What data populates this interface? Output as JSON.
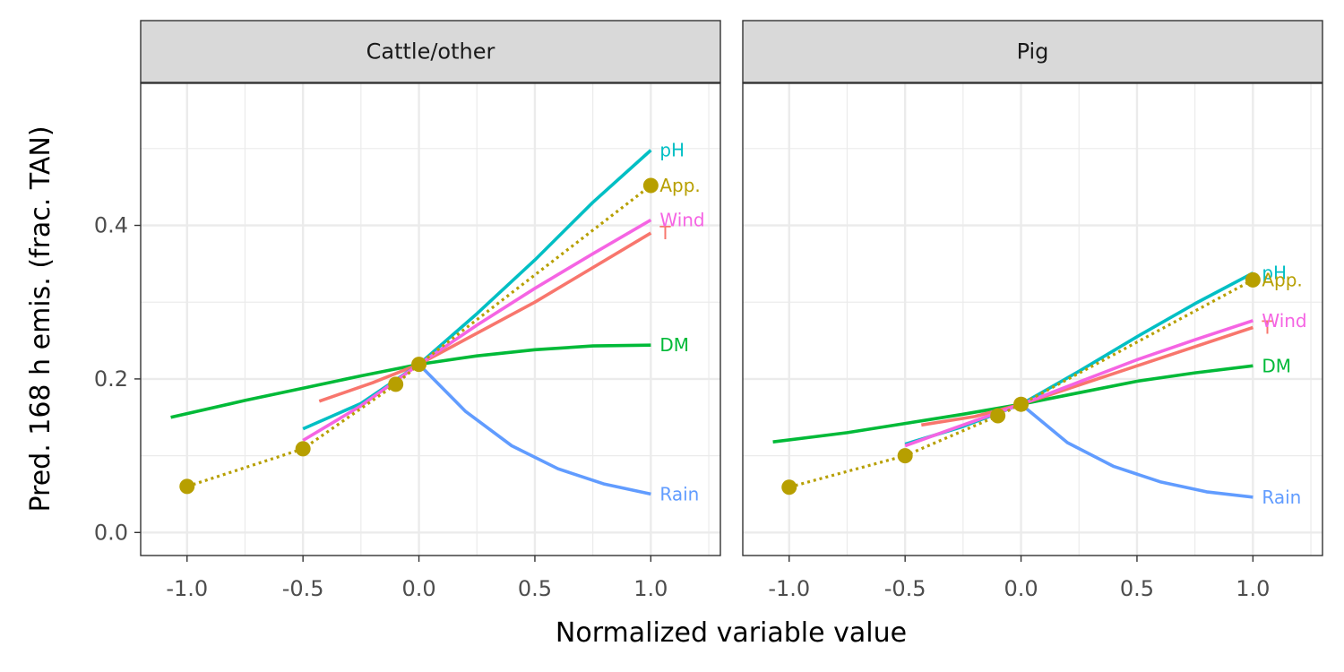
{
  "chart_data": {
    "type": "line",
    "xlabel": "Normalized variable value",
    "ylabel": "Pred. 168 h emis. (frac. TAN)",
    "xlim": [
      -1.2,
      1.3
    ],
    "ylim": [
      -0.03,
      0.585
    ],
    "xticks": [
      -1.0,
      -0.5,
      0.0,
      0.5,
      1.0
    ],
    "xtick_labels": [
      "-1.0",
      "-0.5",
      "0.0",
      "0.5",
      "1.0"
    ],
    "yticks": [
      0.0,
      0.2,
      0.4
    ],
    "ytick_labels": [
      "0.0",
      "0.2",
      "0.4"
    ],
    "grid": true,
    "colors": {
      "T": "#F8766D",
      "App.": "#B79F00",
      "DM": "#00BA38",
      "pH": "#00BFC4",
      "Rain": "#619CFF",
      "Wind": "#F564E3"
    },
    "panels": [
      {
        "strip": "Cattle/other",
        "series": [
          {
            "name": "DM",
            "style": "solid",
            "x": [
              -1.07,
              -0.75,
              -0.5,
              -0.25,
              0.0,
              0.25,
              0.5,
              0.75,
              1.0
            ],
            "y": [
              0.15,
              0.172,
              0.188,
              0.204,
              0.219,
              0.23,
              0.238,
              0.243,
              0.244
            ]
          },
          {
            "name": "T",
            "style": "solid",
            "x": [
              -0.43,
              -0.2,
              0.0,
              0.5,
              1.0
            ],
            "y": [
              0.171,
              0.195,
              0.219,
              0.3,
              0.39
            ]
          },
          {
            "name": "pH",
            "style": "solid",
            "x": [
              -0.5,
              -0.25,
              0.0,
              0.25,
              0.5,
              0.75,
              1.0
            ],
            "y": [
              0.135,
              0.168,
              0.219,
              0.285,
              0.355,
              0.43,
              0.498
            ]
          },
          {
            "name": "Wind",
            "style": "solid",
            "x": [
              -0.5,
              -0.25,
              0.0,
              0.25,
              0.5,
              0.75,
              1.0
            ],
            "y": [
              0.12,
              0.165,
              0.219,
              0.27,
              0.318,
              0.363,
              0.407
            ]
          },
          {
            "name": "Rain",
            "style": "solid",
            "x": [
              0.0,
              0.2,
              0.4,
              0.6,
              0.8,
              1.0
            ],
            "y": [
              0.219,
              0.158,
              0.113,
              0.083,
              0.063,
              0.05
            ]
          },
          {
            "name": "App.",
            "style": "dotted",
            "points": true,
            "x": [
              -1.0,
              -0.5,
              -0.1,
              0.0,
              1.0
            ],
            "y": [
              0.06,
              0.109,
              0.193,
              0.219,
              0.452
            ]
          }
        ]
      },
      {
        "strip": "Pig",
        "series": [
          {
            "name": "DM",
            "style": "solid",
            "x": [
              -1.07,
              -0.75,
              -0.5,
              -0.25,
              0.0,
              0.25,
              0.5,
              0.75,
              1.0
            ],
            "y": [
              0.118,
              0.13,
              0.142,
              0.154,
              0.167,
              0.182,
              0.197,
              0.208,
              0.217
            ]
          },
          {
            "name": "T",
            "style": "solid",
            "x": [
              -0.43,
              -0.2,
              0.0,
              0.5,
              1.0
            ],
            "y": [
              0.14,
              0.151,
              0.167,
              0.217,
              0.267
            ]
          },
          {
            "name": "pH",
            "style": "solid",
            "x": [
              -0.5,
              -0.25,
              0.0,
              0.25,
              0.5,
              0.75,
              1.0
            ],
            "y": [
              0.115,
              0.138,
              0.167,
              0.21,
              0.255,
              0.298,
              0.338
            ]
          },
          {
            "name": "Wind",
            "style": "solid",
            "x": [
              -0.5,
              -0.25,
              0.0,
              0.25,
              0.5,
              0.75,
              1.0
            ],
            "y": [
              0.113,
              0.14,
              0.167,
              0.196,
              0.225,
              0.251,
              0.276
            ]
          },
          {
            "name": "Rain",
            "style": "solid",
            "x": [
              0.0,
              0.2,
              0.4,
              0.6,
              0.8,
              1.0
            ],
            "y": [
              0.167,
              0.117,
              0.086,
              0.066,
              0.053,
              0.046
            ]
          },
          {
            "name": "App.",
            "style": "dotted",
            "points": true,
            "x": [
              -1.0,
              -0.5,
              -0.1,
              0.0,
              1.0
            ],
            "y": [
              0.059,
              0.1,
              0.152,
              0.167,
              0.329
            ]
          }
        ]
      }
    ]
  }
}
